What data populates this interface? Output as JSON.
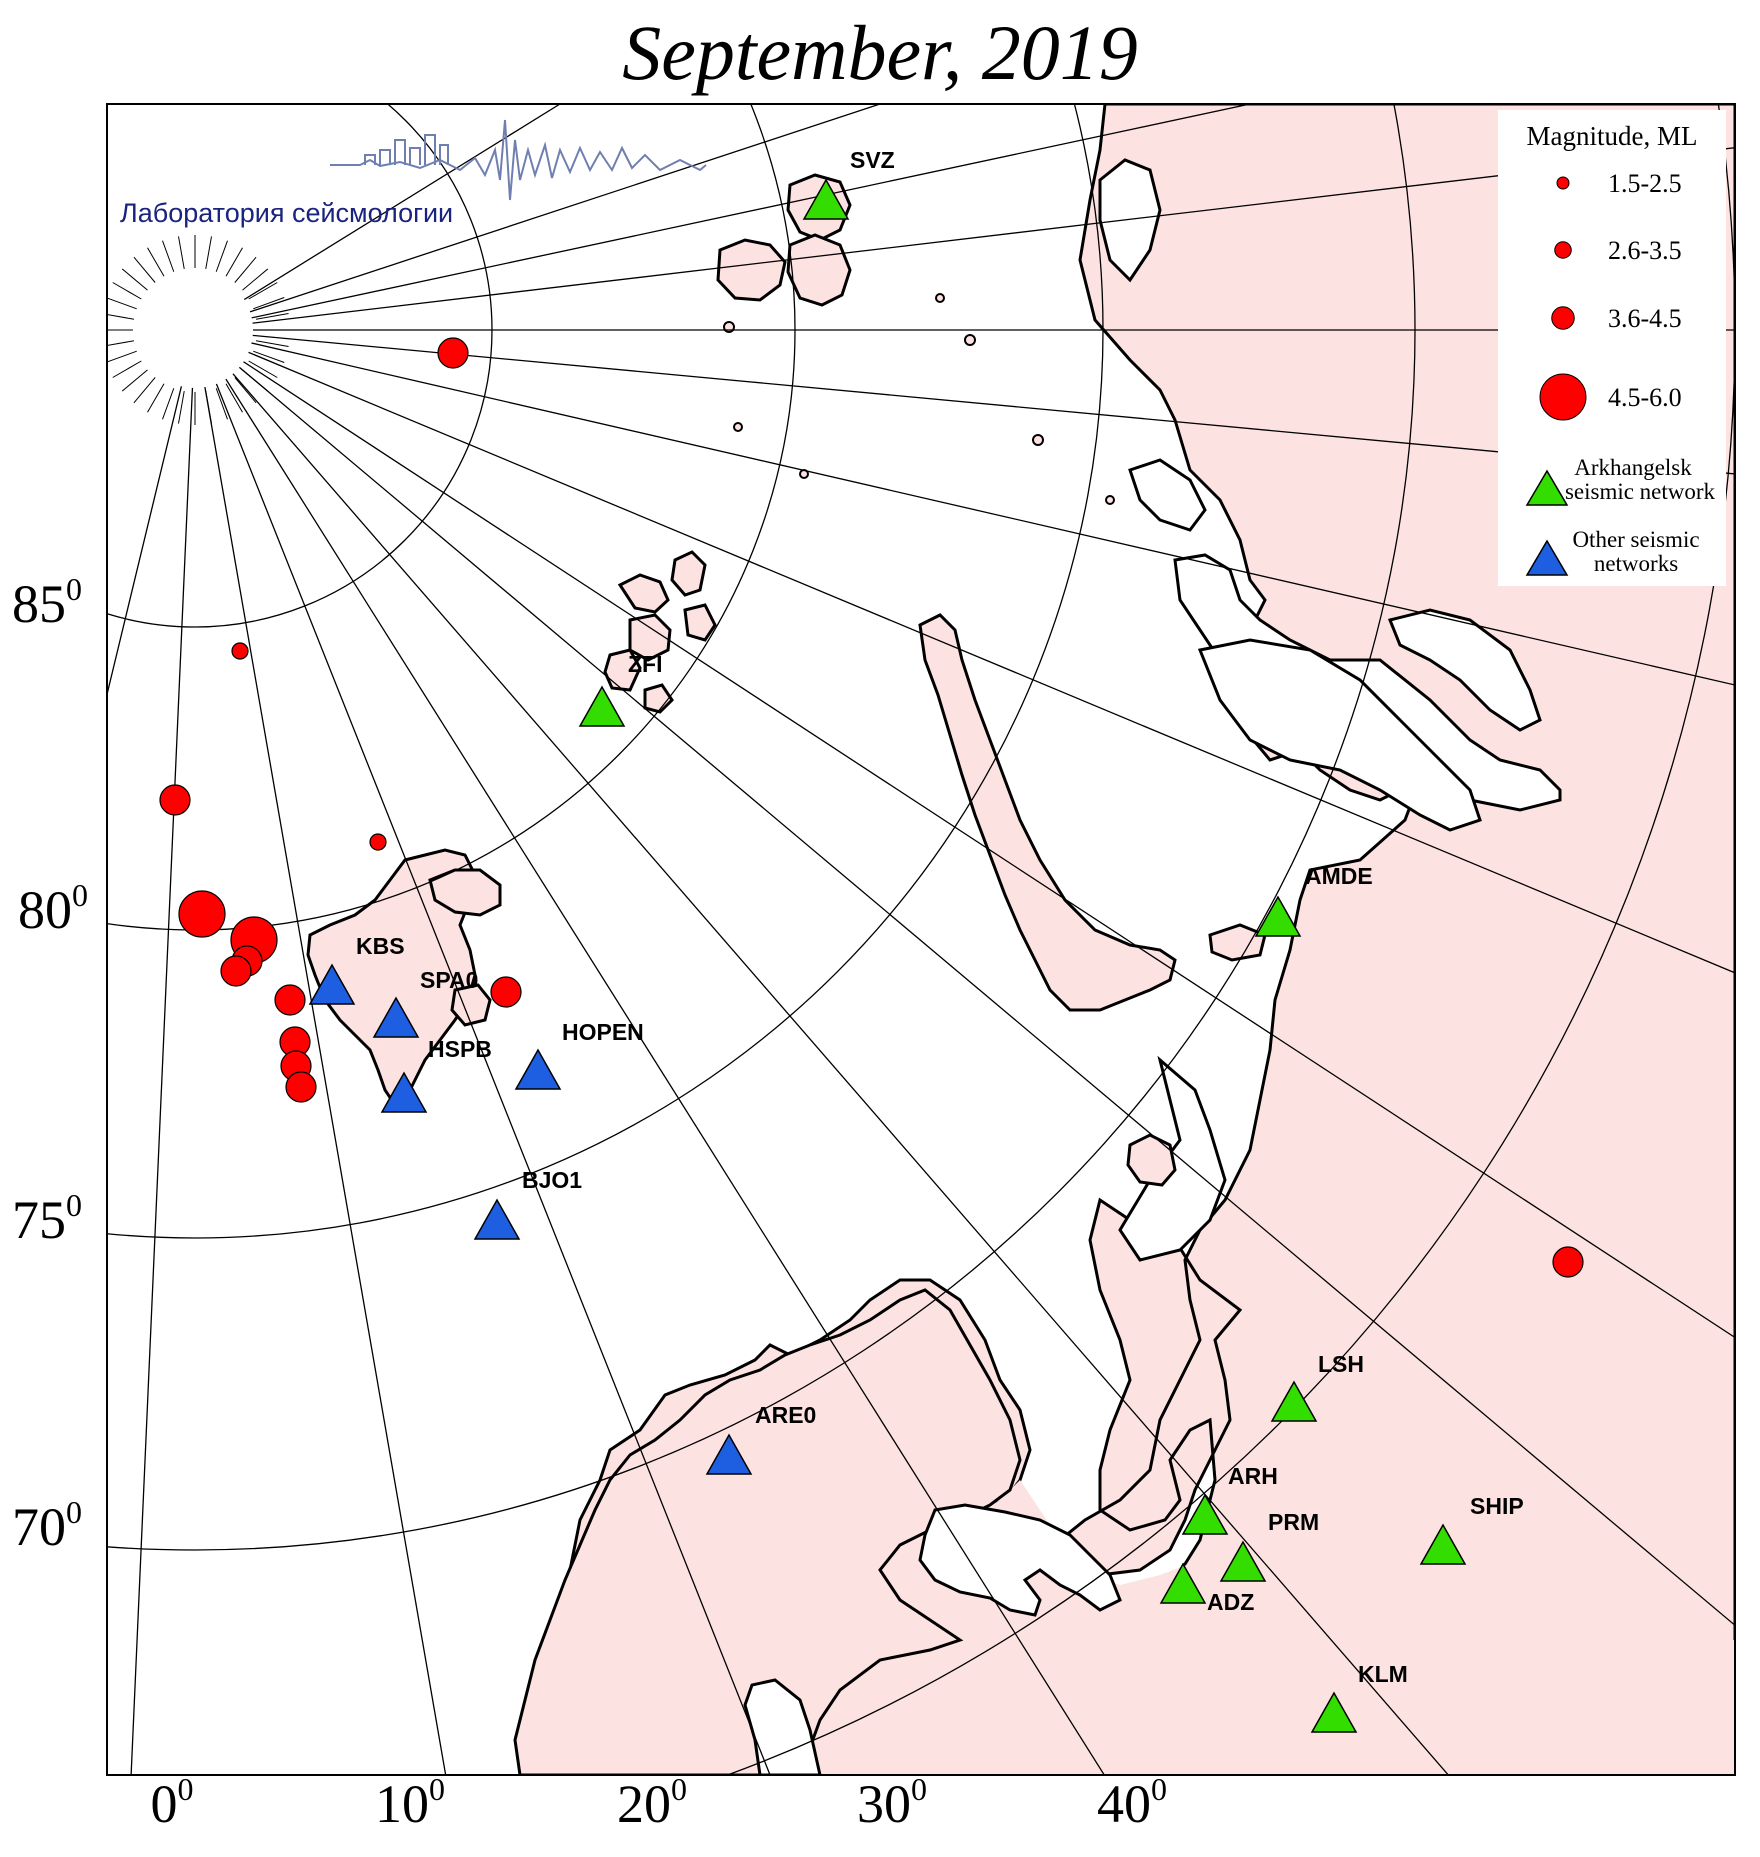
{
  "title": "September, 2019",
  "lab_caption": "Лаборатория сейсмологии",
  "colors": {
    "land": "#fde2e2",
    "sea": "#ffffff",
    "event": "#ff0000",
    "arkhangelsk": "#33dd00",
    "other": "#1d5fe0"
  },
  "lat_labels": [
    {
      "base": "85",
      "exp": "0"
    },
    {
      "base": "80",
      "exp": "0"
    },
    {
      "base": "75",
      "exp": "0"
    },
    {
      "base": "70",
      "exp": "0"
    }
  ],
  "lon_labels": [
    {
      "base": "0",
      "exp": "0"
    },
    {
      "base": "10",
      "exp": "0"
    },
    {
      "base": "20",
      "exp": "0"
    },
    {
      "base": "30",
      "exp": "0"
    },
    {
      "base": "40",
      "exp": "0"
    }
  ],
  "legend": {
    "title": "Magnitude, ML",
    "magnitudes": [
      "1.5-2.5",
      "2.6-3.5",
      "3.6-4.5",
      "4.5-6.0"
    ],
    "arkhangelsk_line1": "Arkhangelsk",
    "arkhangelsk_line2": "seismic network",
    "other_line1": "Other seismic",
    "other_line2": "networks"
  },
  "stations": [
    {
      "code": "SVZ",
      "network": "arkhangelsk"
    },
    {
      "code": "ZFI",
      "network": "arkhangelsk"
    },
    {
      "code": "AMDE",
      "network": "arkhangelsk"
    },
    {
      "code": "KBS",
      "network": "other"
    },
    {
      "code": "SPA0",
      "network": "other"
    },
    {
      "code": "HSPB",
      "network": "other"
    },
    {
      "code": "HOPEN",
      "network": "other"
    },
    {
      "code": "BJO1",
      "network": "other"
    },
    {
      "code": "ARE0",
      "network": "other"
    },
    {
      "code": "LSH",
      "network": "arkhangelsk"
    },
    {
      "code": "ARH",
      "network": "arkhangelsk"
    },
    {
      "code": "PRM",
      "network": "arkhangelsk"
    },
    {
      "code": "ADZ",
      "network": "arkhangelsk"
    },
    {
      "code": "SHIP",
      "network": "arkhangelsk"
    },
    {
      "code": "KLM",
      "network": "arkhangelsk"
    }
  ],
  "events": [
    {
      "magnitude_class": "3.6-4.5"
    },
    {
      "magnitude_class": "1.5-2.5"
    },
    {
      "magnitude_class": "3.6-4.5"
    },
    {
      "magnitude_class": "1.5-2.5"
    },
    {
      "magnitude_class": "4.5-6.0"
    },
    {
      "magnitude_class": "4.5-6.0"
    },
    {
      "magnitude_class": "3.6-4.5"
    },
    {
      "magnitude_class": "3.6-4.5"
    },
    {
      "magnitude_class": "3.6-4.5"
    },
    {
      "magnitude_class": "3.6-4.5"
    },
    {
      "magnitude_class": "3.6-4.5"
    },
    {
      "magnitude_class": "3.6-4.5"
    },
    {
      "magnitude_class": "3.6-4.5"
    },
    {
      "magnitude_class": "3.6-4.5"
    }
  ]
}
